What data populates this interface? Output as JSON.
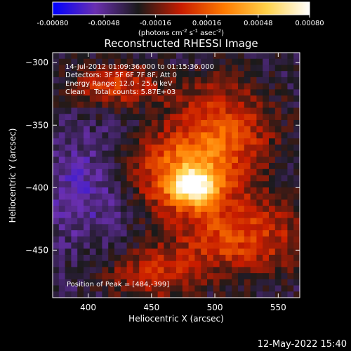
{
  "chart_data": {
    "type": "heatmap",
    "title": "Reconstructed RHESSI Image",
    "xlabel": "Heliocentric X (arcsec)",
    "ylabel": "Heliocentric Y (arcsec)",
    "xlim": [
      372,
      567
    ],
    "ylim": [
      -488,
      -292
    ],
    "x_ticks": [
      400,
      450,
      500,
      550
    ],
    "y_ticks": [
      -300,
      -350,
      -400,
      -450
    ],
    "colorbar": {
      "min": -0.0008,
      "max": 0.0008,
      "ticks": [
        "-0.00080",
        "-0.00048",
        "-0.00016",
        "0.00016",
        "0.00048",
        "0.00080"
      ],
      "unit_text": "(photons cm",
      "unit_sup1": "-2",
      "unit_mid": " s",
      "unit_sup2": "-1",
      "unit_mid2": " asec",
      "unit_sup3": "-2",
      "unit_end": ")",
      "colormap": [
        "#0000ff",
        "#6a2fb0",
        "#1a1a1a",
        "#c81c00",
        "#ff7a00",
        "#ffd24a",
        "#ffffff"
      ]
    },
    "annotations": [
      "14-Jul-2012 01:09:36.000 to 01:15:36.000",
      "Detectors: 3F 5F 6F 7F 8F, Att 0",
      "Energy Range: 12.0 - 25.0 keV",
      "Clean    Total counts: 5.87E+03"
    ],
    "peak_label": "Position of Peak = [484,-399]",
    "peak": {
      "x": 484,
      "y": -399
    },
    "sources": [
      {
        "x": 484,
        "y": -399,
        "amplitude": 0.00075,
        "sigma_x": 12,
        "sigma_y": 10
      },
      {
        "x": 470,
        "y": -390,
        "amplitude": 0.0005,
        "sigma_x": 30,
        "sigma_y": 22
      },
      {
        "x": 505,
        "y": -355,
        "amplitude": 0.00045,
        "sigma_x": 30,
        "sigma_y": 30
      },
      {
        "x": 520,
        "y": -440,
        "amplitude": 0.00045,
        "sigma_x": 38,
        "sigma_y": 22
      },
      {
        "x": 420,
        "y": -318,
        "amplitude": 0.0004,
        "sigma_x": 25,
        "sigma_y": 12
      },
      {
        "x": 450,
        "y": -470,
        "amplitude": 0.00035,
        "sigma_x": 25,
        "sigma_y": 15
      },
      {
        "x": 400,
        "y": -400,
        "amplitude": -0.0002,
        "sigma_x": 28,
        "sigma_y": 28
      }
    ]
  },
  "footer_timestamp": "12-May-2022 15:40"
}
